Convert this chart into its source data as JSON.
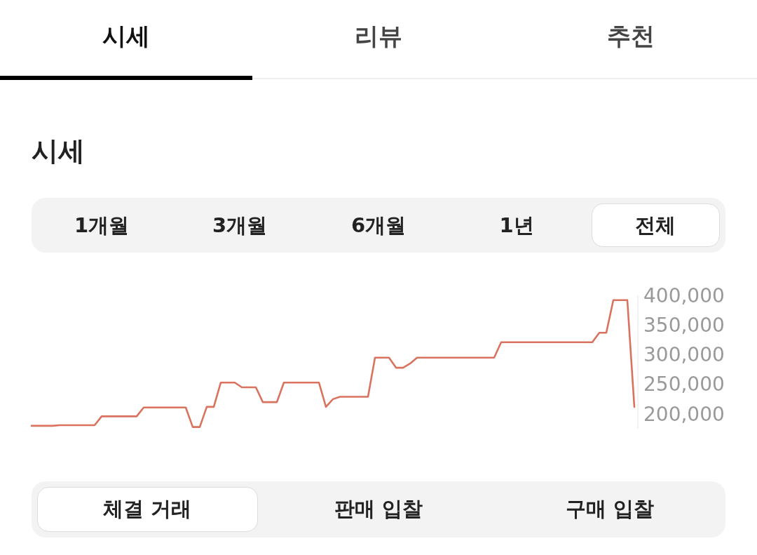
{
  "chart_data": {
    "type": "line",
    "title": "시세",
    "annotations": [
      "시세",
      "리뷰",
      "추천",
      "1개월",
      "3개월",
      "6개월",
      "1년",
      "전체",
      "체결 거래",
      "판매 입찰",
      "구매 입찰"
    ],
    "categories": [
      null,
      null,
      null,
      null,
      null,
      null,
      null,
      null,
      null,
      null,
      null,
      null,
      null,
      null,
      null,
      null,
      null,
      null,
      null,
      null,
      null,
      null,
      null,
      null,
      null,
      null,
      null,
      null,
      null,
      null,
      null,
      null,
      null,
      null,
      null,
      null,
      null,
      null,
      null,
      null,
      null,
      null,
      null,
      null,
      null,
      null,
      null,
      null,
      null,
      null,
      null,
      null,
      null,
      null,
      null,
      null,
      null,
      null,
      null,
      null,
      null,
      null,
      null,
      null,
      null,
      null,
      null,
      null,
      null,
      null,
      null,
      null,
      null,
      null,
      null,
      null,
      null,
      null,
      null,
      null,
      null,
      null,
      null,
      null,
      null,
      null,
      null
    ],
    "series": [
      {
        "color": "#d9735f",
        "values": [
          180000,
          180000,
          180000,
          180000,
          181000,
          181000,
          181000,
          181000,
          181000,
          181000,
          196000,
          196000,
          196000,
          196000,
          196000,
          196000,
          211000,
          211000,
          211000,
          211000,
          211000,
          211000,
          211000,
          178000,
          178000,
          212000,
          212000,
          253000,
          253000,
          253000,
          245000,
          245000,
          245000,
          220000,
          220000,
          220000,
          253000,
          253000,
          253000,
          253000,
          253000,
          253000,
          212000,
          225000,
          229000,
          229000,
          229000,
          229000,
          229000,
          295000,
          295000,
          295000,
          278000,
          278000,
          285000,
          295000,
          295000,
          295000,
          295000,
          295000,
          295000,
          295000,
          295000,
          295000,
          295000,
          295000,
          295000,
          321000,
          321000,
          321000,
          321000,
          321000,
          321000,
          321000,
          321000,
          321000,
          321000,
          321000,
          321000,
          321000,
          321000,
          337000,
          337000,
          392000,
          392000,
          392000,
          212000
        ]
      }
    ],
    "yticks": [
      {
        "value": 200000,
        "label": "200,000"
      },
      {
        "value": 250000,
        "label": "250,000"
      },
      {
        "value": 300000,
        "label": "300,000"
      },
      {
        "value": 350000,
        "label": "350,000"
      },
      {
        "value": 400000,
        "label": "400,000"
      }
    ],
    "ylim": [
      175000,
      400000
    ],
    "grid": false,
    "tick_labels": "y"
  }
}
